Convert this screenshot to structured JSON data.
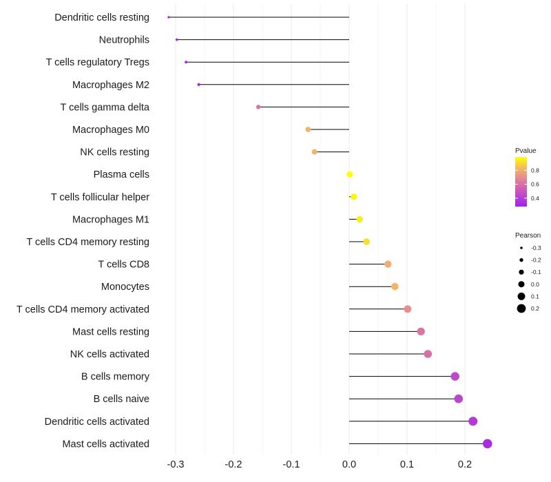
{
  "chart_data": {
    "type": "lollipop",
    "title": "",
    "xlabel": "",
    "ylabel": "",
    "xlim": [
      -0.315,
      0.245
    ],
    "x_ticks": [
      -0.3,
      -0.2,
      -0.1,
      0.0,
      0.1,
      0.2
    ],
    "x_tick_labels": [
      "-0.3",
      "-0.2",
      "-0.1",
      "0.0",
      "0.1",
      "0.2"
    ],
    "grid": true,
    "baseline": 0,
    "categories": [
      "Dendritic cells resting",
      "Neutrophils",
      "T cells regulatory  Tregs",
      "Macrophages M2",
      "T cells gamma delta",
      "Macrophages M0",
      "NK cells resting",
      "Plasma cells",
      "T cells follicular helper",
      "Macrophages M1",
      "T cells CD4 memory resting",
      "T cells CD8",
      "Monocytes",
      "T cells CD4 memory activated",
      "Mast cells resting",
      "NK cells activated",
      "B cells memory",
      "B cells naive",
      "Dendritic cells activated",
      "Mast cells activated"
    ],
    "values": [
      -0.312,
      -0.298,
      -0.282,
      -0.26,
      -0.157,
      -0.071,
      -0.06,
      0.001,
      0.008,
      0.018,
      0.03,
      0.067,
      0.079,
      0.101,
      0.124,
      0.136,
      0.183,
      0.189,
      0.214,
      0.239
    ],
    "pvalues": [
      0.3,
      0.3,
      0.3,
      0.32,
      0.6,
      0.82,
      0.82,
      0.99,
      0.97,
      0.95,
      0.92,
      0.8,
      0.82,
      0.7,
      0.62,
      0.6,
      0.45,
      0.43,
      0.38,
      0.33
    ],
    "size_by": "Pearson",
    "color_by": "Pvalue",
    "legend_color": {
      "title": "Pvalue",
      "range": [
        0.28,
        0.99
      ],
      "ticks": [
        0.4,
        0.6,
        0.8
      ],
      "tick_labels": [
        "0.4",
        "0.6",
        "0.8"
      ],
      "low_color": "#a020f0",
      "high_color": "#ffff00",
      "placement": "right"
    },
    "legend_size": {
      "title": "Pearson",
      "values": [
        -0.3,
        -0.2,
        -0.1,
        0.0,
        0.1,
        0.2
      ],
      "labels": [
        "-0.3",
        "-0.2",
        "-0.1",
        "0.0",
        "0.1",
        "0.2"
      ],
      "placement": "right"
    }
  }
}
